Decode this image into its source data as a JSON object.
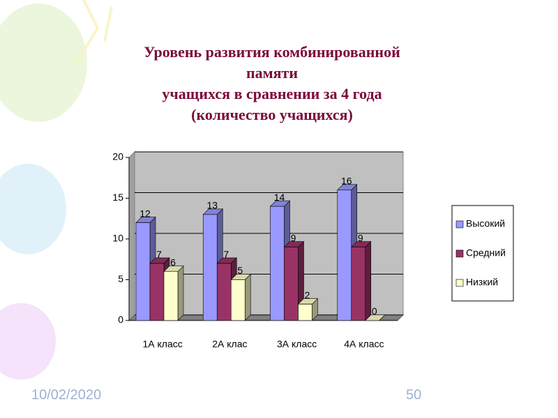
{
  "chart_data": {
    "type": "bar3d",
    "title": "Уровень развития комбинированной\nпамяти\nучащихся в сравнении за 4 года\n(количество учащихся)",
    "categories": [
      "1А класс",
      "2А клас",
      "3А класс",
      "4А класс"
    ],
    "series": [
      {
        "name": "Высокий",
        "color": "#9999ff",
        "values": [
          12,
          13,
          14,
          16
        ]
      },
      {
        "name": "Средний",
        "color": "#993366",
        "values": [
          7,
          7,
          9,
          9
        ]
      },
      {
        "name": "Низкий",
        "color": "#ffffcc",
        "values": [
          6,
          5,
          2,
          0
        ]
      }
    ],
    "ylim": [
      0,
      20
    ],
    "yticks": [
      0,
      5,
      10,
      15,
      20
    ],
    "grid": true,
    "legend": "right"
  },
  "footer": {
    "date": "10/02/2020",
    "page": "50"
  }
}
